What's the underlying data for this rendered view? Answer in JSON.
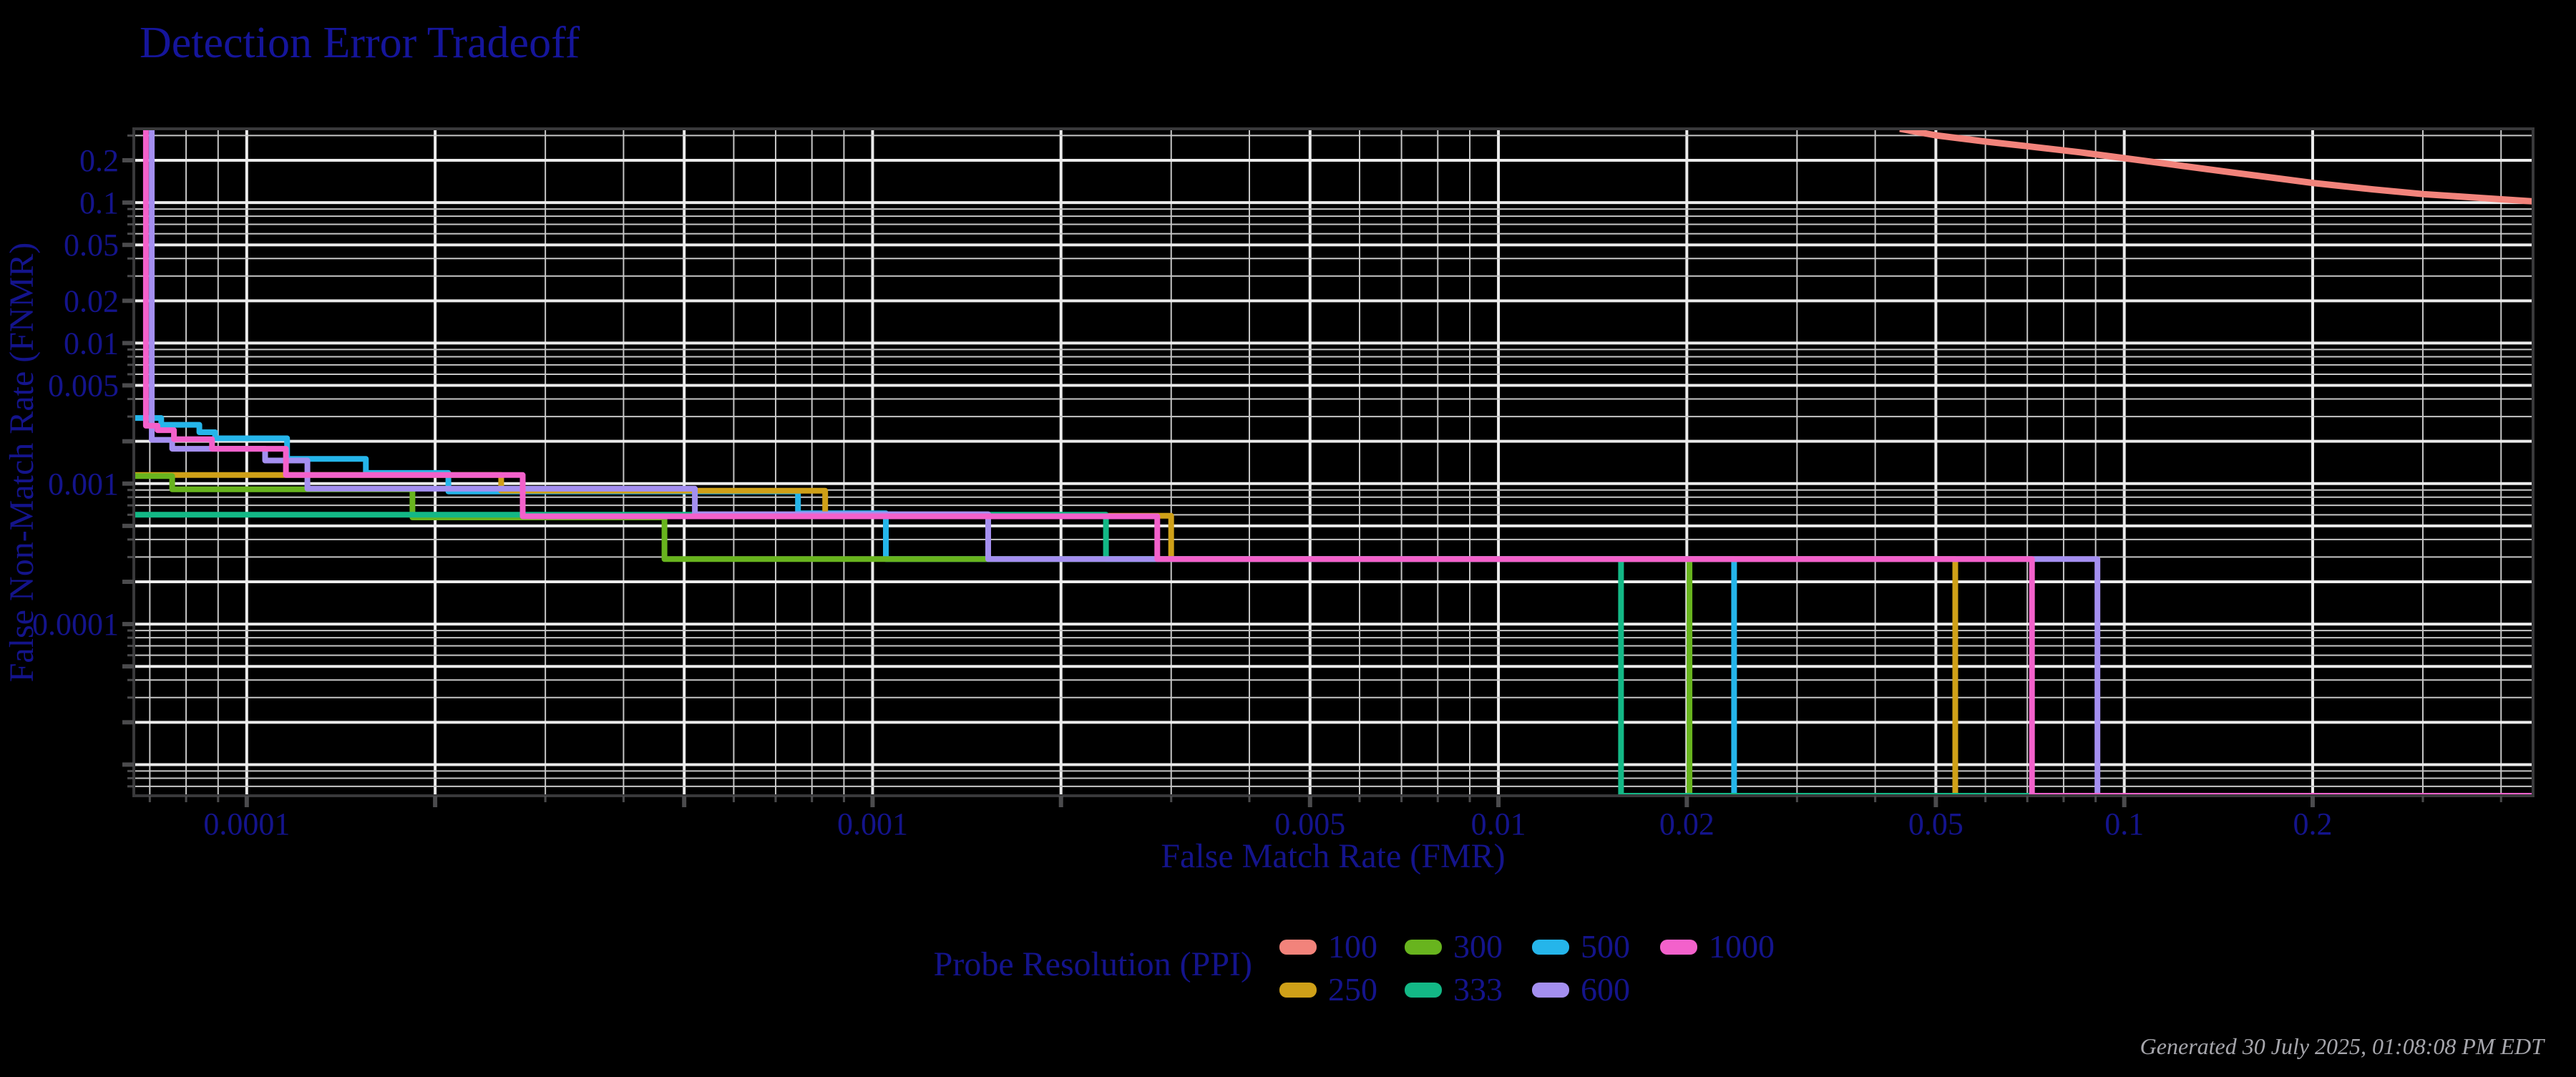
{
  "title": "Detection Error Tradeoff",
  "footer": {
    "generated": "Generated 30 July 2025, 01:08:08 PM EDT"
  },
  "legend": {
    "title": "Probe Resolution (PPI)",
    "entries": [
      {
        "label": "100",
        "color": "#f2837b"
      },
      {
        "label": "250",
        "color": "#cfa018"
      },
      {
        "label": "300",
        "color": "#68b41e"
      },
      {
        "label": "333",
        "color": "#13b886"
      },
      {
        "label": "500",
        "color": "#25b5ea"
      },
      {
        "label": "600",
        "color": "#a48ff0"
      },
      {
        "label": "1000",
        "color": "#f361cb"
      }
    ]
  },
  "colors": {
    "background": "#000000",
    "grid_major": "#ebebeb",
    "grid_minor": "#c6c6c6",
    "frame": "#39393b",
    "tick": "#4b4b4d",
    "text_navy": "#14148c",
    "timestamp_gray": "#a6a6ac"
  },
  "chart_data": {
    "type": "line",
    "title": "Detection Error Tradeoff",
    "xlabel": "False Match Rate (FMR)",
    "ylabel": "False Non-Match Rate (FNMR)",
    "x_axis": {
      "scale": "log",
      "range": [
        6.6e-05,
        0.45
      ],
      "tick_labels": [
        "0.0001",
        "0.001",
        "0.005",
        "0.01",
        "0.02",
        "0.05",
        "0.1",
        "0.2"
      ]
    },
    "y_axis": {
      "scale": "log",
      "range": [
        6e-06,
        0.335
      ],
      "tick_labels": [
        "0.2",
        "0.1",
        "0.05",
        "0.02",
        "0.01",
        "0.005",
        "0.001",
        "0.0001"
      ]
    },
    "grid": {
      "major_at": [
        1,
        2,
        5
      ],
      "minor_at": [
        3,
        4,
        6,
        7,
        8,
        9
      ]
    },
    "legend_position": "bottom",
    "series": [
      {
        "name": "500",
        "color": "#25b5ea",
        "style": "step",
        "points": [
          [
            6.6e-05,
            0.00293
          ],
          [
            7.3e-05,
            0.00293
          ],
          [
            7.3e-05,
            0.00262
          ],
          [
            8.4e-05,
            0.00262
          ],
          [
            8.4e-05,
            0.00232
          ],
          [
            8.9e-05,
            0.00232
          ],
          [
            8.9e-05,
            0.0021
          ],
          [
            0.000116,
            0.0021
          ],
          [
            0.000116,
            0.0015
          ],
          [
            0.000155,
            0.0015
          ],
          [
            0.000155,
            0.00119
          ],
          [
            0.00021,
            0.00119
          ],
          [
            0.00021,
            0.00088
          ],
          [
            0.00076,
            0.00088
          ],
          [
            0.00076,
            0.000615
          ],
          [
            0.00105,
            0.000615
          ],
          [
            0.00105,
            0.00029
          ],
          [
            0.0238,
            0.00029
          ],
          [
            0.0238,
            6e-06
          ],
          [
            0.45,
            6e-06
          ]
        ]
      },
      {
        "name": "250",
        "color": "#cfa018",
        "style": "step",
        "points": [
          [
            6.6e-05,
            0.00115
          ],
          [
            0.000255,
            0.00115
          ],
          [
            0.000255,
            0.00089
          ],
          [
            0.00084,
            0.00089
          ],
          [
            0.00084,
            0.00059
          ],
          [
            0.003,
            0.00059
          ],
          [
            0.003,
            0.00029
          ],
          [
            0.0537,
            0.00029
          ],
          [
            0.0537,
            6e-06
          ],
          [
            0.45,
            6e-06
          ]
        ]
      },
      {
        "name": "300",
        "color": "#68b41e",
        "style": "step",
        "points": [
          [
            6.6e-05,
            0.00113
          ],
          [
            7.6e-05,
            0.00113
          ],
          [
            7.6e-05,
            0.00091
          ],
          [
            0.000184,
            0.00091
          ],
          [
            0.000184,
            0.000575
          ],
          [
            0.000465,
            0.000575
          ],
          [
            0.000465,
            0.00029
          ],
          [
            0.0202,
            0.00029
          ],
          [
            0.0202,
            6e-06
          ],
          [
            0.45,
            6e-06
          ]
        ]
      },
      {
        "name": "333",
        "color": "#13b886",
        "style": "step",
        "points": [
          [
            6.6e-05,
            0.0006
          ],
          [
            0.00236,
            0.0006
          ],
          [
            0.00236,
            0.00029
          ],
          [
            0.0157,
            0.00029
          ],
          [
            0.0157,
            6e-06
          ],
          [
            0.45,
            6e-06
          ]
        ]
      },
      {
        "name": "600",
        "color": "#a48ff0",
        "style": "step",
        "points": [
          [
            7.05e-05,
            0.335
          ],
          [
            7.05e-05,
            0.00205
          ],
          [
            7.6e-05,
            0.00205
          ],
          [
            7.6e-05,
            0.00177
          ],
          [
            0.000107,
            0.00177
          ],
          [
            0.000107,
            0.00146
          ],
          [
            0.000125,
            0.00146
          ],
          [
            0.000125,
            0.00092
          ],
          [
            0.00052,
            0.00092
          ],
          [
            0.00052,
            0.000605
          ],
          [
            0.00153,
            0.000605
          ],
          [
            0.00153,
            0.00029
          ],
          [
            0.0906,
            0.00029
          ],
          [
            0.0906,
            6e-06
          ],
          [
            0.45,
            6e-06
          ]
        ]
      },
      {
        "name": "1000",
        "color": "#f361cb",
        "style": "step",
        "points": [
          [
            6.9e-05,
            0.335
          ],
          [
            6.9e-05,
            0.00258
          ],
          [
            7.2e-05,
            0.00258
          ],
          [
            7.2e-05,
            0.0024
          ],
          [
            7.65e-05,
            0.0024
          ],
          [
            7.65e-05,
            0.00207
          ],
          [
            8.8e-05,
            0.00207
          ],
          [
            8.8e-05,
            0.00177
          ],
          [
            0.0001155,
            0.00177
          ],
          [
            0.0001155,
            0.00115
          ],
          [
            0.000276,
            0.00115
          ],
          [
            0.000276,
            0.000585
          ],
          [
            0.00285,
            0.000585
          ],
          [
            0.00285,
            0.00029
          ],
          [
            0.0712,
            0.00029
          ],
          [
            0.0712,
            6e-06
          ],
          [
            0.45,
            6e-06
          ]
        ]
      },
      {
        "name": "100",
        "color": "#f2837b",
        "style": "smooth",
        "points": [
          [
            0.0438,
            0.335
          ],
          [
            0.05,
            0.301
          ],
          [
            0.06,
            0.272
          ],
          [
            0.07,
            0.252
          ],
          [
            0.085,
            0.228
          ],
          [
            0.1,
            0.207
          ],
          [
            0.12,
            0.186
          ],
          [
            0.15,
            0.163
          ],
          [
            0.2,
            0.138
          ],
          [
            0.25,
            0.124
          ],
          [
            0.3,
            0.115
          ],
          [
            0.37,
            0.108
          ],
          [
            0.45,
            0.102
          ]
        ]
      }
    ]
  }
}
